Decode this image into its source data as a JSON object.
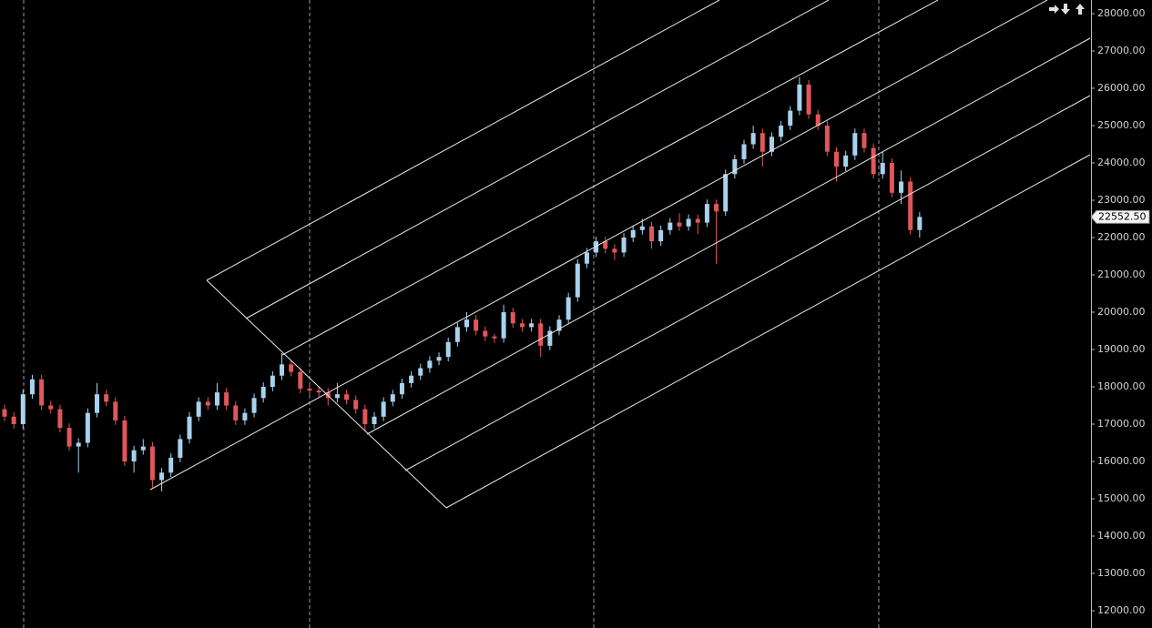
{
  "chart_data": {
    "type": "candlestick",
    "up_color": "#a8d2ee",
    "down_color": "#e0575a",
    "ylim": [
      12000,
      28000
    ],
    "yticks": [
      {
        "value": 12000,
        "label": "12000.00"
      },
      {
        "value": 13000,
        "label": "13000.00"
      },
      {
        "value": 14000,
        "label": "14000.00"
      },
      {
        "value": 15000,
        "label": "15000.00"
      },
      {
        "value": 16000,
        "label": "16000.00"
      },
      {
        "value": 17000,
        "label": "17000.00"
      },
      {
        "value": 18000,
        "label": "18000.00"
      },
      {
        "value": 19000,
        "label": "19000.00"
      },
      {
        "value": 20000,
        "label": "20000.00"
      },
      {
        "value": 21000,
        "label": "21000.00"
      },
      {
        "value": 22000,
        "label": "22000.00"
      },
      {
        "value": 23000,
        "label": "23000.00"
      },
      {
        "value": 24000,
        "label": "24000.00"
      },
      {
        "value": 25000,
        "label": "25000.00"
      },
      {
        "value": 26000,
        "label": "26000.00"
      },
      {
        "value": 27000,
        "label": "27000.00"
      },
      {
        "value": 28000,
        "label": "28000.00"
      }
    ],
    "last_price": {
      "value": 22552.5,
      "label": "22552.50"
    },
    "open": [
      17400,
      17200,
      17000,
      17800,
      18200,
      17500,
      17400,
      16900,
      16400,
      16500,
      17300,
      17800,
      17600,
      17100,
      16000,
      16300,
      16400,
      15500,
      15700,
      16100,
      16600,
      17200,
      17600,
      17500,
      17850,
      17500,
      17100,
      17300,
      17700,
      18000,
      18300,
      18600,
      18400,
      17950,
      17900,
      17850,
      17700,
      17800,
      17650,
      17400,
      17000,
      17200,
      17600,
      17800,
      18100,
      18300,
      18500,
      18700,
      18800,
      19200,
      19600,
      19800,
      19500,
      19350,
      19300,
      20000,
      19700,
      19600,
      19700,
      19100,
      19500,
      19800,
      20400,
      21300,
      21600,
      21900,
      21700,
      21600,
      22000,
      22200,
      22300,
      21900,
      22200,
      22400,
      22300,
      22500,
      22400,
      22900,
      22700,
      23700,
      24100,
      24500,
      24800,
      24300,
      24700,
      25000,
      25400,
      26100,
      25300,
      25000,
      24300,
      23900,
      24200,
      24800,
      24400,
      23700,
      24000,
      23200,
      23500,
      22200
    ],
    "high": [
      17520,
      17320,
      17920,
      18320,
      18320,
      17620,
      17520,
      17020,
      16620,
      17420,
      18100,
      17920,
      17720,
      17220,
      16420,
      16600,
      16520,
      15820,
      16220,
      16720,
      17320,
      17720,
      17720,
      18100,
      17970,
      17620,
      17420,
      17820,
      18120,
      18420,
      18900,
      18720,
      18520,
      18070,
      18020,
      17970,
      18100,
      17920,
      17770,
      17520,
      17320,
      17720,
      17920,
      18220,
      18420,
      18620,
      18820,
      18920,
      19320,
      19720,
      20000,
      19920,
      19620,
      19420,
      20200,
      20120,
      19820,
      19820,
      19820,
      19620,
      19920,
      20520,
      21420,
      21720,
      22020,
      22020,
      21820,
      22120,
      22320,
      22500,
      22420,
      22320,
      22520,
      22650,
      22620,
      22620,
      23020,
      23020,
      23820,
      24220,
      24620,
      25000,
      24920,
      24820,
      25120,
      25520,
      26300,
      26220,
      25420,
      25120,
      24420,
      24320,
      24920,
      24920,
      24520,
      24300,
      24120,
      23800,
      23620,
      22680
    ],
    "low": [
      17080,
      16880,
      16880,
      17680,
      17380,
      17280,
      16780,
      16280,
      15700,
      16380,
      17180,
      17480,
      16980,
      15880,
      15700,
      16180,
      15300,
      15200,
      15580,
      15980,
      16480,
      17080,
      17380,
      17380,
      17380,
      16980,
      16980,
      17180,
      17580,
      17880,
      18180,
      18280,
      17830,
      17780,
      17730,
      17500,
      17580,
      17530,
      17280,
      16800,
      16880,
      17080,
      17480,
      17680,
      17980,
      18180,
      18380,
      18580,
      18680,
      19080,
      19480,
      19380,
      19230,
      19180,
      19180,
      19580,
      19480,
      19480,
      18800,
      18980,
      19380,
      19680,
      20280,
      21180,
      21480,
      21580,
      21400,
      21480,
      21880,
      22080,
      21700,
      21780,
      22080,
      22180,
      22180,
      22100,
      22280,
      21300,
      22580,
      23580,
      23980,
      24380,
      23900,
      24180,
      24580,
      24880,
      25280,
      25180,
      24880,
      24180,
      23500,
      23780,
      24080,
      24280,
      23580,
      23580,
      23080,
      22900,
      22080,
      22000
    ],
    "close": [
      17200,
      17000,
      17800,
      18200,
      17500,
      17400,
      16900,
      16400,
      16500,
      17300,
      17800,
      17600,
      17100,
      16000,
      16300,
      16400,
      15500,
      15700,
      16100,
      16600,
      17200,
      17600,
      17500,
      17850,
      17500,
      17100,
      17300,
      17700,
      18000,
      18300,
      18600,
      18400,
      17950,
      17900,
      17850,
      17700,
      17800,
      17650,
      17400,
      17000,
      17200,
      17600,
      17800,
      18100,
      18300,
      18500,
      18700,
      18800,
      19200,
      19600,
      19800,
      19500,
      19350,
      19300,
      20000,
      19700,
      19600,
      19700,
      19100,
      19500,
      19800,
      20400,
      21300,
      21600,
      21900,
      21700,
      21600,
      22000,
      22200,
      22300,
      21900,
      22200,
      22400,
      22300,
      22500,
      22400,
      22900,
      22700,
      23700,
      24100,
      24500,
      24800,
      24300,
      24700,
      25000,
      25400,
      26100,
      25300,
      25000,
      24300,
      23900,
      24200,
      24800,
      24400,
      23700,
      24000,
      23200,
      23500,
      22200,
      22552.5
    ]
  }
}
